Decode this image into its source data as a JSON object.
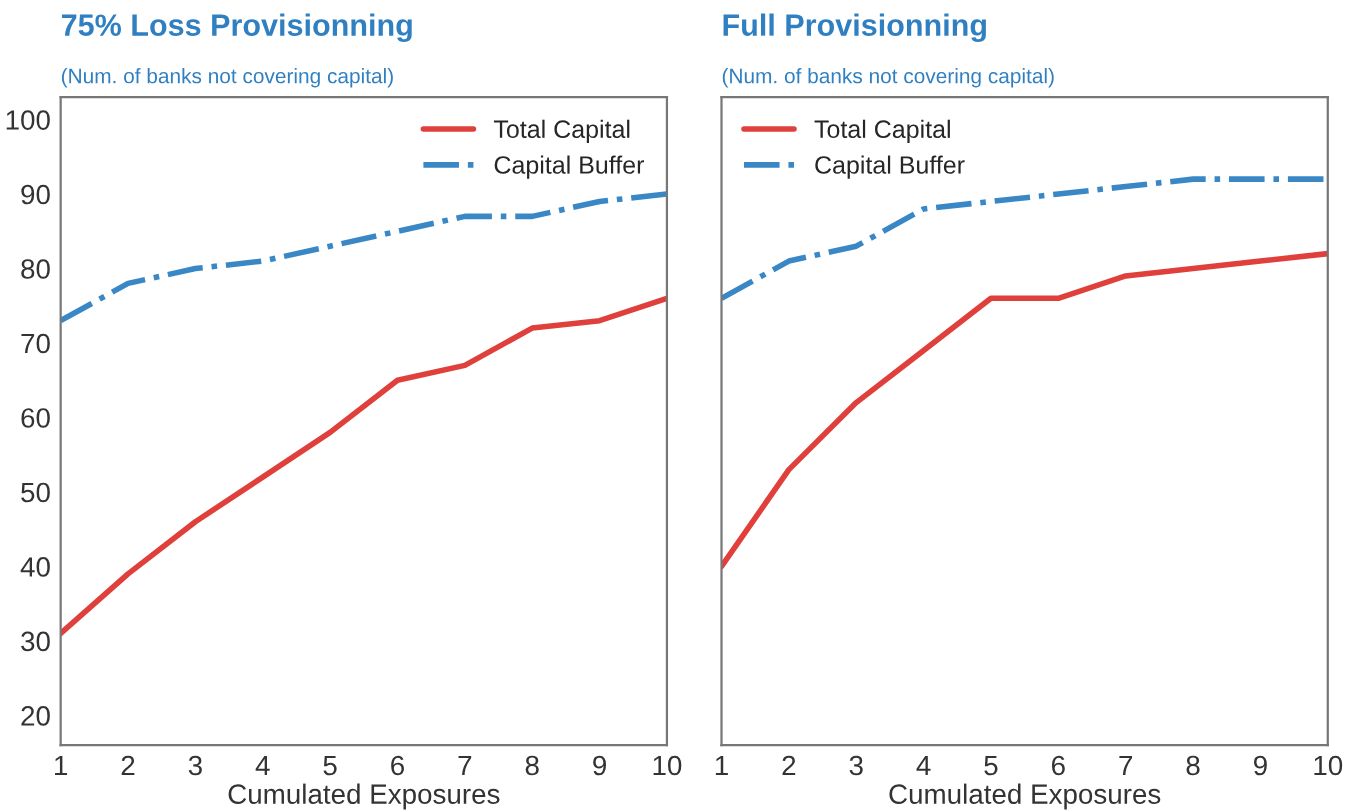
{
  "chart_data": [
    {
      "type": "line",
      "title": "75% Loss Provisionning",
      "subtitle": "(Num. of banks not covering capital)",
      "xlabel": "Cumulated Exposures",
      "x": [
        1,
        2,
        3,
        4,
        5,
        6,
        7,
        8,
        9,
        10
      ],
      "series": [
        {
          "name": "Total Capital",
          "color": "#e0403c",
          "line_style": "solid",
          "values": [
            31,
            39,
            46,
            52,
            58,
            65,
            67,
            72,
            73,
            76
          ]
        },
        {
          "name": "Capital Buffer",
          "color": "#3a87c6",
          "line_style": "dashdot",
          "values": [
            73,
            78,
            80,
            81,
            83,
            85,
            87,
            87,
            89,
            90
          ]
        }
      ],
      "xlim": [
        1,
        10
      ],
      "xticks": [
        1,
        2,
        3,
        4,
        5,
        6,
        7,
        8,
        9,
        10
      ],
      "ylim": [
        16,
        103
      ],
      "yticks": [
        20,
        30,
        40,
        50,
        60,
        70,
        80,
        90,
        100
      ],
      "grid": false,
      "legend": "top right"
    },
    {
      "type": "line",
      "title": "Full Provisionning",
      "subtitle": "(Num. of banks not covering capital)",
      "xlabel": "Cumulated Exposures",
      "x": [
        1,
        2,
        3,
        4,
        5,
        6,
        7,
        8,
        9,
        10
      ],
      "series": [
        {
          "name": "Total Capital",
          "color": "#e0403c",
          "line_style": "solid",
          "values": [
            40,
            53,
            62,
            69,
            76,
            76,
            79,
            80,
            81,
            82
          ]
        },
        {
          "name": "Capital Buffer",
          "color": "#3a87c6",
          "line_style": "dashdot",
          "values": [
            76,
            81,
            83,
            88,
            89,
            90,
            91,
            92,
            92,
            92
          ]
        }
      ],
      "xlim": [
        1,
        10
      ],
      "xticks": [
        1,
        2,
        3,
        4,
        5,
        6,
        7,
        8,
        9,
        10
      ],
      "ylim": [
        16,
        103
      ],
      "yticks": [
        20,
        30,
        40,
        50,
        60,
        70,
        80,
        90,
        100
      ],
      "grid": false,
      "legend": "top left",
      "tick_labels": "x"
    }
  ]
}
